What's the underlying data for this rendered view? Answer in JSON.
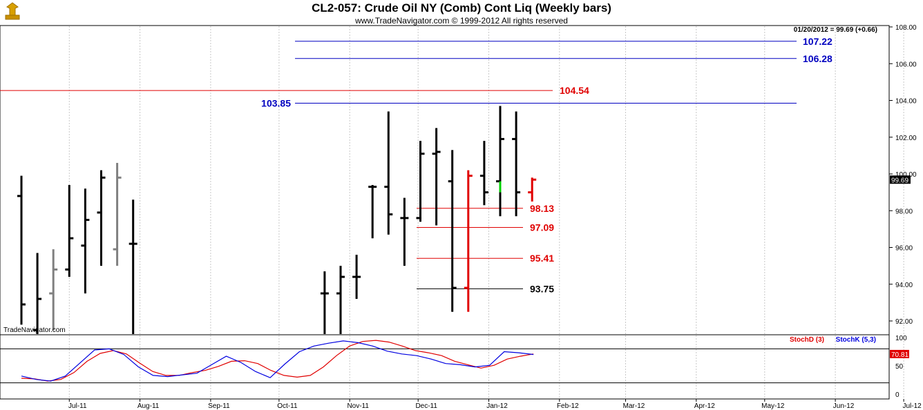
{
  "header": {
    "title": "CL2-057:  Crude Oil NY (Comb) Cont Liq  (Weekly bars)",
    "copyright": "www.TradeNavigator.com © 1999-2012 All rights reserved",
    "last_quote": "01/20/2012 = 99.69 (+0.66)",
    "watermark": "TradeNavigator.com"
  },
  "colors": {
    "up_bar": "#000000",
    "gray_bar": "#808080",
    "red_level": "#e00000",
    "blue_level": "#0000c0",
    "green_tick": "#00d000",
    "stochD": "#e00000",
    "stochK": "#0000e0"
  },
  "chart_data": {
    "type": "ohlc",
    "price_axis": {
      "min": 91,
      "max": 108.5,
      "ticks": [
        "92.00",
        "94.00",
        "96.00",
        "98.00",
        "100.00",
        "102.00",
        "104.00",
        "106.00",
        "108.00"
      ]
    },
    "last_price_tag": "99.69",
    "x_labels": [
      "Jul-11",
      "Aug-11",
      "Sep-11",
      "Oct-11",
      "Nov-11",
      "Dec-11",
      "Jan-12",
      "Feb-12",
      "Mar-12",
      "Apr-12",
      "May-12",
      "Jun-12",
      "Jul-12"
    ],
    "bars": [
      {
        "date": "2011-06-10",
        "high": 99.9,
        "low": 91.8,
        "open": 98.8,
        "close": 92.9,
        "color": "black"
      },
      {
        "date": "2011-06-17",
        "high": 95.7,
        "low": 91.0,
        "open": 91.5,
        "close": 93.2,
        "color": "black"
      },
      {
        "date": "2011-06-24",
        "high": 95.9,
        "low": 91.5,
        "open": 93.5,
        "close": 94.8,
        "color": "gray"
      },
      {
        "date": "2011-07-01",
        "high": 99.4,
        "low": 94.4,
        "open": 94.8,
        "close": 96.5,
        "color": "black"
      },
      {
        "date": "2011-07-08",
        "high": 99.2,
        "low": 93.5,
        "open": 96.1,
        "close": 97.5,
        "color": "black"
      },
      {
        "date": "2011-07-15",
        "high": 100.2,
        "low": 95.0,
        "open": 97.9,
        "close": 99.8,
        "color": "black"
      },
      {
        "date": "2011-07-22",
        "high": 100.6,
        "low": 95.0,
        "open": 95.9,
        "close": 99.8,
        "color": "gray"
      },
      {
        "date": "2011-07-29",
        "high": 98.6,
        "low": 91.2,
        "open": 96.2,
        "close": 96.2,
        "color": "black"
      },
      {
        "date": "2011-10-21",
        "high": 94.7,
        "low": 91.1,
        "open": 93.5,
        "close": 93.5,
        "color": "black"
      },
      {
        "date": "2011-10-28",
        "high": 95.0,
        "low": 91.2,
        "open": 93.5,
        "close": 94.4,
        "color": "black"
      },
      {
        "date": "2011-11-04",
        "high": 95.6,
        "low": 93.2,
        "open": 94.4,
        "close": 94.4,
        "color": "black"
      },
      {
        "date": "2011-11-11",
        "high": 99.4,
        "low": 96.5,
        "open": 99.3,
        "close": 99.3,
        "color": "black"
      },
      {
        "date": "2011-11-18",
        "high": 103.4,
        "low": 96.7,
        "open": 99.3,
        "close": 97.8,
        "color": "black"
      },
      {
        "date": "2011-11-25",
        "high": 98.7,
        "low": 95.0,
        "open": 97.6,
        "close": 97.6,
        "color": "black"
      },
      {
        "date": "2011-12-02",
        "high": 101.8,
        "low": 97.4,
        "open": 97.6,
        "close": 101.1,
        "color": "black"
      },
      {
        "date": "2011-12-09",
        "high": 102.5,
        "low": 97.2,
        "open": 101.1,
        "close": 101.2,
        "color": "black"
      },
      {
        "date": "2011-12-16",
        "high": 101.3,
        "low": 92.5,
        "open": 99.6,
        "close": 93.8,
        "color": "black"
      },
      {
        "date": "2011-12-23",
        "high": 100.2,
        "low": 92.5,
        "open": 93.8,
        "close": 99.9,
        "color": "red"
      },
      {
        "date": "2011-12-30",
        "high": 101.8,
        "low": 98.3,
        "open": 99.9,
        "close": 99.0,
        "color": "black"
      },
      {
        "date": "2012-01-06",
        "high": 103.7,
        "low": 97.7,
        "open": 99.6,
        "close": 101.9,
        "color": "black"
      },
      {
        "date": "2012-01-13",
        "high": 103.4,
        "low": 97.7,
        "open": 101.9,
        "close": 99.0,
        "color": "black"
      },
      {
        "date": "2012-01-20",
        "high": 99.8,
        "low": 98.5,
        "open": 99.0,
        "close": 99.69,
        "color": "red"
      }
    ],
    "levels": [
      {
        "value": 107.22,
        "label": "107.22",
        "color": "blue"
      },
      {
        "value": 106.28,
        "label": "106.28",
        "color": "blue"
      },
      {
        "value": 104.54,
        "label": "104.54",
        "color": "red"
      },
      {
        "value": 103.85,
        "label": "103.85",
        "color": "blue"
      },
      {
        "value": 98.13,
        "label": "98.13",
        "color": "red"
      },
      {
        "value": 97.09,
        "label": "97.09",
        "color": "red"
      },
      {
        "value": 95.41,
        "label": "95.41",
        "color": "red"
      },
      {
        "value": 93.75,
        "label": "93.75",
        "color": "black"
      }
    ],
    "stochastic": {
      "axis_ticks": [
        "100",
        "50",
        "0"
      ],
      "value_tag": "70.81",
      "legend": [
        "StochD (3)",
        "StochK (5,3)"
      ],
      "reference_lines": [
        80,
        20
      ],
      "stochD": [
        28,
        27,
        23,
        26,
        38,
        58,
        72,
        77,
        71,
        55,
        40,
        33,
        33,
        38,
        42,
        49,
        58,
        59,
        54,
        42,
        33,
        30,
        33,
        48,
        68,
        85,
        93,
        95,
        92,
        85,
        77,
        73,
        68,
        58,
        52,
        46,
        51,
        62,
        67,
        71
      ],
      "stochK": [
        32,
        26,
        23,
        32,
        55,
        78,
        80,
        70,
        48,
        33,
        31,
        34,
        37,
        52,
        67,
        56,
        40,
        29,
        53,
        75,
        85,
        90,
        94,
        91,
        85,
        76,
        71,
        68,
        62,
        54,
        52,
        48,
        51,
        75,
        73,
        70
      ]
    }
  }
}
